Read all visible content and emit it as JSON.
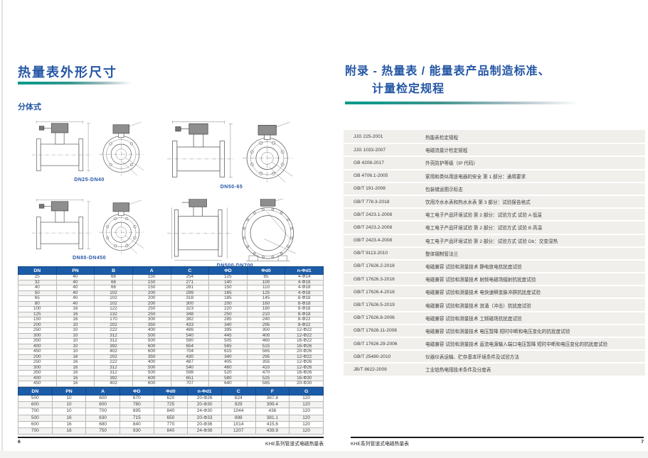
{
  "page_left": {
    "title": "热量表外形尺寸",
    "section_label": "分体式",
    "diagram_labels": [
      "DN25-DN40",
      "DN50-65",
      "DN80-DN450",
      "DN500-DN700"
    ],
    "table1": {
      "headers": [
        "DN",
        "PN",
        "B",
        "A",
        "C",
        "ΦD",
        "Φd0",
        "n-Φd1"
      ],
      "rows": [
        [
          "25",
          "40",
          "66",
          "150",
          "254",
          "125",
          "85",
          "4-Φ14"
        ],
        [
          "32",
          "40",
          "66",
          "150",
          "271",
          "140",
          "100",
          "4-Φ18"
        ],
        [
          "40",
          "40",
          "66",
          "150",
          "281",
          "150",
          "110",
          "4-Φ18"
        ],
        [
          "50",
          "40",
          "102",
          "200",
          "299",
          "165",
          "125",
          "4-Φ18"
        ],
        [
          "65",
          "40",
          "102",
          "200",
          "318",
          "185",
          "145",
          "8-Φ18"
        ],
        [
          "80",
          "40",
          "102",
          "200",
          "300",
          "200",
          "160",
          "8-Φ18"
        ],
        [
          "100",
          "16",
          "122",
          "250",
          "323",
          "220",
          "180",
          "8-Φ18"
        ],
        [
          "125",
          "16",
          "132",
          "250",
          "348",
          "250",
          "210",
          "8-Φ18"
        ],
        [
          "150",
          "16",
          "170",
          "300",
          "382",
          "285",
          "240",
          "8-Φ22"
        ],
        [
          "200",
          "10",
          "202",
          "350",
          "433",
          "340",
          "295",
          "8-Φ22"
        ],
        [
          "250",
          "10",
          "222",
          "400",
          "486",
          "395",
          "350",
          "12-Φ22"
        ],
        [
          "300",
          "10",
          "312",
          "500",
          "540",
          "445",
          "400",
          "12-Φ22"
        ],
        [
          "350",
          "10",
          "312",
          "500",
          "590",
          "505",
          "460",
          "16-Φ22"
        ],
        [
          "400",
          "10",
          "392",
          "600",
          "654",
          "565",
          "515",
          "16-Φ26"
        ],
        [
          "450",
          "10",
          "402",
          "600",
          "704",
          "615",
          "565",
          "20-Φ26"
        ],
        [
          "200",
          "16",
          "202",
          "350",
          "430",
          "340",
          "295",
          "12-Φ22"
        ],
        [
          "250",
          "16",
          "222",
          "400",
          "487",
          "405",
          "355",
          "12-Φ26"
        ],
        [
          "300",
          "16",
          "312",
          "500",
          "540",
          "460",
          "410",
          "12-Φ26"
        ],
        [
          "350",
          "16",
          "312",
          "500",
          "598",
          "520",
          "470",
          "16-Φ26"
        ],
        [
          "400",
          "16",
          "392",
          "600",
          "651",
          "580",
          "525",
          "16-Φ30"
        ],
        [
          "450",
          "16",
          "402",
          "600",
          "707",
          "640",
          "585",
          "20-Φ30"
        ]
      ]
    },
    "table2": {
      "headers": [
        "DN",
        "PN",
        "A",
        "ΦD",
        "Φd0",
        "n-Φd1",
        "C",
        "F",
        "G"
      ],
      "rows": [
        [
          "500",
          "10",
          "600",
          "670",
          "620",
          "20-Φ26",
          "824",
          "367.8",
          "120"
        ],
        [
          "600",
          "10",
          "600",
          "780",
          "725",
          "20-Φ30",
          "929",
          "399.4",
          "120"
        ],
        [
          "700",
          "10",
          "700",
          "895",
          "840",
          "24-Φ30",
          "1044",
          "436",
          "120"
        ],
        [
          "500",
          "16",
          "630",
          "715",
          "650",
          "20-Φ33",
          "898",
          "381.1",
          "120"
        ],
        [
          "600",
          "16",
          "680",
          "840",
          "770",
          "20-Φ36",
          "1014",
          "415.6",
          "120"
        ],
        [
          "700",
          "16",
          "750",
          "930",
          "840",
          "24-Φ36",
          "1207",
          "439.9",
          "120"
        ]
      ]
    },
    "footer": {
      "page_number": "6",
      "doc_title": "KHE系列管道式电磁热量表"
    }
  },
  "page_right": {
    "title_line1": "附录 - 热量表 / 能量表产品制造标准、",
    "title_line2": "计量检定规程",
    "standards": [
      [
        "JJG 225-2001",
        "热能表检定规程"
      ],
      [
        "JJG 1033-2007",
        "电磁流量计检定规程"
      ],
      [
        "GB 4208-2017",
        "外壳防护等级（IP 代码）"
      ],
      [
        "GB 4706.1-2005",
        "家用和类似用途电器的安全 第 1 部分：通用要求"
      ],
      [
        "GB/T 191-2008",
        "包装储运图示标志"
      ],
      [
        "GB/T 778.3-2018",
        "饮用冷水水表和热水水表 第 3 部分：试验报告格式"
      ],
      [
        "GB/T 2423.1-2008",
        "电工电子产品环境试验 第 2 部分：试验方式 试验 A 低温"
      ],
      [
        "GB/T 2423.2-2008",
        "电工电子产品环境试验 第 2 部分：试验方式 试验 B 高温"
      ],
      [
        "GB/T 2423.4-2008",
        "电工电子产品环境试验 第 2 部分：试验方式 试验 Db：交变湿热"
      ],
      [
        "GB/T 9113-2010",
        "整体钢制管法兰"
      ],
      [
        "GB/T 17626.2-2018",
        "电磁兼容 试验和测量技术 静电放电抗扰度试验"
      ],
      [
        "GB/T 17626.3-2016",
        "电磁兼容 试验和测量技术 射频电磁场辐射抗扰度试验"
      ],
      [
        "GB/T 17626.4-2018",
        "电磁兼容 试验和测量技术 电快速瞬变脉冲群抗扰度试验"
      ],
      [
        "GB/T 17626.5-2019",
        "电磁兼容 试验和测量技术 浪涌（冲击）抗扰度试验"
      ],
      [
        "GB/T 17626.8-2006",
        "电磁兼容 试验和测量技术 工频磁场抗扰度试验"
      ],
      [
        "GB/T 17626.11-2008",
        "电磁兼容 试验和测量技术 电压暂降 短时中断和电压变化的抗扰度试验"
      ],
      [
        "GB/T 17626.29-2006",
        "电磁兼容 试验和测量技术 直流电源输入端口电压暂降 短时中断和电压变化的抗扰度试验"
      ],
      [
        "GB/T 25480-2010",
        "仪器仪表运输、贮存基本环境条件及试验方法"
      ],
      [
        "JB/T 8622-2009",
        "工业铂热电阻技术条件及分度表"
      ]
    ],
    "footer": {
      "doc_title": "KHE系列管道式电磁热量表",
      "page_number": "7"
    }
  },
  "colors": {
    "accent_blue": "#2456a4",
    "accent_teal": "#009a8b",
    "table_header_bg": "#1b5ca9",
    "panel_gray": "#f1efec"
  }
}
